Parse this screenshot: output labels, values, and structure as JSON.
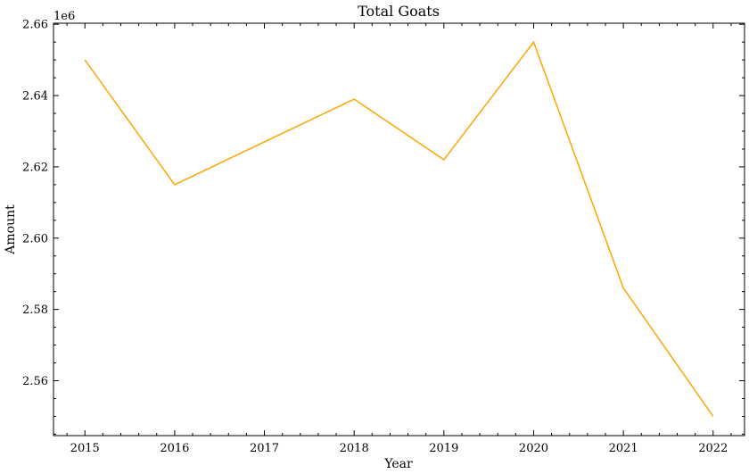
{
  "chart_data": {
    "type": "line",
    "title": "Total Goats",
    "xlabel": "Year",
    "ylabel": "Amount",
    "offset_label": "1e6",
    "x": [
      2015,
      2016,
      2017,
      2018,
      2019,
      2020,
      2021,
      2022
    ],
    "xticks": [
      "2015",
      "2016",
      "2017",
      "2018",
      "2019",
      "2020",
      "2021",
      "2022"
    ],
    "yticks": [
      "2.56",
      "2.58",
      "2.60",
      "2.62",
      "2.64",
      "2.66"
    ],
    "ytick_values": [
      2.56,
      2.58,
      2.6,
      2.62,
      2.64,
      2.66
    ],
    "xlim": [
      2014.65,
      2022.35
    ],
    "ylim": [
      2.5446,
      2.6603
    ],
    "series": [
      {
        "values": [
          2.65,
          2.615,
          2.627,
          2.639,
          2.622,
          2.655,
          2.586,
          2.55
        ],
        "color": "#FFA500"
      }
    ],
    "grid": false,
    "minor_ticks": true
  }
}
